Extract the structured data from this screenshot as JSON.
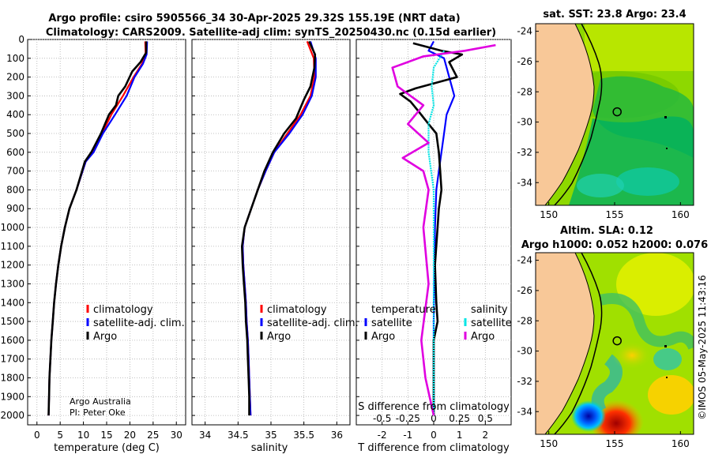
{
  "titles": {
    "line1": "Argo profile: csiro 5905566_34 30-Apr-2025 29.32S 155.19E (NRT data)",
    "line2": "Climatology: CARS2009. Satellite-adj clim: synTS_20250430.nc (0.15d earlier)",
    "sst": "sat. SST: 23.8 Argo: 23.4",
    "sla1": "Altim. SLA: 0.12",
    "sla2": "Argo h1000: 0.052 h2000: 0.076"
  },
  "watermark": "©IMOS 05-May-2025 11:43:16",
  "credit": {
    "line1": "Argo Australia",
    "line2": "PI: Peter Oke"
  },
  "legend_profiles": [
    "climatology",
    "satellite-adj. clim.",
    "Argo"
  ],
  "legend_diff": {
    "temperature_header": "temperature",
    "salinity_header": "salinity",
    "t_items": [
      "satellite",
      "Argo"
    ],
    "s_items": [
      "satellite",
      "Argo"
    ]
  },
  "colors": {
    "clim": "#ff0000",
    "sat": "#0000ff",
    "argo": "#000000",
    "sal_sat": "#00e5e5",
    "sal_argo": "#e000e0",
    "land": "#f8c898"
  },
  "chart_data": [
    {
      "type": "line",
      "xlabel": "temperature (deg C)",
      "ylabel": "",
      "xlim": [
        -2,
        32
      ],
      "ylim": [
        2050,
        0
      ],
      "xticks": [
        0,
        5,
        10,
        15,
        20,
        25,
        30
      ],
      "yticks": [
        0,
        100,
        200,
        300,
        400,
        500,
        600,
        700,
        800,
        900,
        1000,
        1100,
        1200,
        1300,
        1400,
        1500,
        1600,
        1700,
        1800,
        1900,
        2000
      ],
      "series": [
        {
          "name": "climatology",
          "points": [
            [
              23.3,
              10
            ],
            [
              23.4,
              80
            ],
            [
              22.6,
              130
            ],
            [
              20.8,
              200
            ],
            [
              18.5,
              300
            ],
            [
              16,
              400
            ],
            [
              14,
              500
            ],
            [
              12,
              600
            ],
            [
              10.5,
              650
            ],
            [
              8.5,
              800
            ],
            [
              7,
              900
            ],
            [
              6,
              1000
            ],
            [
              5.2,
              1100
            ],
            [
              4.6,
              1200
            ],
            [
              4.1,
              1300
            ],
            [
              3.7,
              1400
            ],
            [
              3.4,
              1500
            ],
            [
              3.1,
              1600
            ],
            [
              2.9,
              1700
            ],
            [
              2.7,
              1800
            ],
            [
              2.6,
              1900
            ],
            [
              2.5,
              2000
            ]
          ]
        },
        {
          "name": "satellite-adj. clim.",
          "points": [
            [
              23.7,
              10
            ],
            [
              23.6,
              80
            ],
            [
              22.8,
              130
            ],
            [
              21,
              200
            ],
            [
              19.3,
              300
            ],
            [
              16.8,
              400
            ],
            [
              14.2,
              500
            ],
            [
              12.2,
              600
            ],
            [
              10.5,
              650
            ],
            [
              8.5,
              800
            ],
            [
              7,
              900
            ],
            [
              6,
              1000
            ],
            [
              5.2,
              1100
            ],
            [
              4.6,
              1200
            ],
            [
              4.1,
              1300
            ],
            [
              3.7,
              1400
            ],
            [
              3.4,
              1500
            ],
            [
              3.1,
              1600
            ],
            [
              2.9,
              1700
            ],
            [
              2.7,
              1800
            ],
            [
              2.6,
              1900
            ],
            [
              2.5,
              2000
            ]
          ]
        },
        {
          "name": "Argo",
          "points": [
            [
              23.5,
              10
            ],
            [
              23.5,
              70
            ],
            [
              22.3,
              120
            ],
            [
              20.5,
              170
            ],
            [
              19,
              250
            ],
            [
              17.5,
              300
            ],
            [
              17,
              350
            ],
            [
              15.5,
              400
            ],
            [
              13.8,
              500
            ],
            [
              11.7,
              600
            ],
            [
              10.3,
              650
            ],
            [
              8.5,
              800
            ],
            [
              7,
              900
            ],
            [
              6,
              1000
            ],
            [
              5.2,
              1100
            ],
            [
              4.6,
              1200
            ],
            [
              4.1,
              1300
            ],
            [
              3.7,
              1400
            ],
            [
              3.4,
              1500
            ],
            [
              3.1,
              1600
            ],
            [
              2.9,
              1700
            ],
            [
              2.7,
              1800
            ],
            [
              2.6,
              1900
            ],
            [
              2.5,
              2000
            ]
          ]
        }
      ]
    },
    {
      "type": "line",
      "xlabel": "salinity",
      "xlim": [
        33.8,
        36.2
      ],
      "ylim": [
        2050,
        0
      ],
      "xticks": [
        34,
        34.5,
        35,
        35.5,
        36
      ],
      "series": [
        {
          "name": "climatology",
          "points": [
            [
              35.55,
              10
            ],
            [
              35.65,
              100
            ],
            [
              35.66,
              200
            ],
            [
              35.6,
              300
            ],
            [
              35.45,
              400
            ],
            [
              35.25,
              500
            ],
            [
              35.05,
              600
            ],
            [
              34.92,
              700
            ],
            [
              34.8,
              800
            ],
            [
              34.7,
              900
            ],
            [
              34.6,
              1000
            ],
            [
              34.57,
              1100
            ],
            [
              34.58,
              1200
            ],
            [
              34.6,
              1300
            ],
            [
              34.62,
              1400
            ],
            [
              34.63,
              1500
            ],
            [
              34.65,
              1600
            ],
            [
              34.66,
              1700
            ],
            [
              34.67,
              1800
            ],
            [
              34.68,
              1900
            ],
            [
              34.69,
              2000
            ]
          ]
        },
        {
          "name": "satellite-adj. clim.",
          "points": [
            [
              35.6,
              10
            ],
            [
              35.68,
              100
            ],
            [
              35.68,
              200
            ],
            [
              35.62,
              300
            ],
            [
              35.48,
              400
            ],
            [
              35.28,
              500
            ],
            [
              35.05,
              600
            ],
            [
              34.92,
              700
            ],
            [
              34.8,
              800
            ],
            [
              34.7,
              900
            ],
            [
              34.6,
              1000
            ],
            [
              34.57,
              1100
            ],
            [
              34.58,
              1200
            ],
            [
              34.6,
              1300
            ],
            [
              34.62,
              1400
            ],
            [
              34.63,
              1500
            ],
            [
              34.65,
              1600
            ],
            [
              34.66,
              1700
            ],
            [
              34.67,
              1800
            ],
            [
              34.68,
              1900
            ],
            [
              34.69,
              2000
            ]
          ]
        },
        {
          "name": "Argo",
          "points": [
            [
              35.58,
              10
            ],
            [
              35.67,
              80
            ],
            [
              35.66,
              150
            ],
            [
              35.6,
              250
            ],
            [
              35.5,
              320
            ],
            [
              35.38,
              420
            ],
            [
              35.2,
              500
            ],
            [
              35.03,
              600
            ],
            [
              34.9,
              700
            ],
            [
              34.8,
              800
            ],
            [
              34.7,
              900
            ],
            [
              34.6,
              1000
            ],
            [
              34.56,
              1100
            ],
            [
              34.57,
              1200
            ],
            [
              34.59,
              1300
            ],
            [
              34.61,
              1400
            ],
            [
              34.62,
              1500
            ],
            [
              34.64,
              1600
            ],
            [
              34.65,
              1700
            ],
            [
              34.66,
              1800
            ],
            [
              34.67,
              1900
            ],
            [
              34.67,
              2000
            ]
          ]
        }
      ]
    },
    {
      "type": "line",
      "xlabel": "T difference from climatology",
      "xlabel2": "S difference from climatology",
      "xlim": [
        -3,
        3
      ],
      "ylim": [
        2050,
        0
      ],
      "xticks": [
        -2,
        -1,
        0,
        1,
        2
      ],
      "xticks2": [
        -0.5,
        -0.25,
        0,
        0.25,
        0.5
      ],
      "series": [
        {
          "name": "temperature satellite",
          "points": [
            [
              0,
              10
            ],
            [
              -0.2,
              60
            ],
            [
              0.4,
              100
            ],
            [
              0.6,
              200
            ],
            [
              0.8,
              300
            ],
            [
              0.5,
              400
            ],
            [
              0.4,
              500
            ],
            [
              0.3,
              600
            ],
            [
              0.2,
              700
            ],
            [
              0.1,
              800
            ],
            [
              0.05,
              1000
            ],
            [
              0,
              1500
            ],
            [
              0,
              2000
            ]
          ]
        },
        {
          "name": "temperature Argo",
          "points": [
            [
              -0.8,
              20
            ],
            [
              0.3,
              60
            ],
            [
              1.1,
              80
            ],
            [
              0.6,
              120
            ],
            [
              0.9,
              200
            ],
            [
              -0.7,
              260
            ],
            [
              -1.3,
              290
            ],
            [
              -0.9,
              330
            ],
            [
              -0.6,
              380
            ],
            [
              -0.2,
              450
            ],
            [
              0.1,
              500
            ],
            [
              0.2,
              600
            ],
            [
              0.25,
              700
            ],
            [
              0.3,
              800
            ],
            [
              0.2,
              900
            ],
            [
              0.15,
              1000
            ],
            [
              0.05,
              1200
            ],
            [
              0.1,
              1400
            ],
            [
              0.15,
              1500
            ],
            [
              0,
              1600
            ],
            [
              0,
              1800
            ],
            [
              0,
              2000
            ]
          ]
        },
        {
          "name": "salinity satellite",
          "points": [
            [
              0.1,
              60
            ],
            [
              0,
              150
            ],
            [
              -0.02,
              250
            ],
            [
              0,
              350
            ],
            [
              -0.05,
              450
            ],
            [
              -0.05,
              600
            ],
            [
              0,
              800
            ],
            [
              0,
              1000
            ],
            [
              0,
              2000
            ]
          ]
        },
        {
          "name": "salinity Argo",
          "points": [
            [
              0.6,
              30
            ],
            [
              0.3,
              60
            ],
            [
              -0.1,
              90
            ],
            [
              -0.4,
              150
            ],
            [
              -0.35,
              250
            ],
            [
              -0.1,
              350
            ],
            [
              -0.25,
              450
            ],
            [
              -0.05,
              550
            ],
            [
              -0.3,
              630
            ],
            [
              -0.1,
              700
            ],
            [
              -0.05,
              800
            ],
            [
              -0.1,
              1000
            ],
            [
              -0.05,
              1300
            ],
            [
              -0.12,
              1600
            ],
            [
              -0.08,
              1800
            ],
            [
              0,
              2000
            ]
          ]
        }
      ]
    },
    {
      "type": "heatmap",
      "title": "sat. SST: 23.8 Argo: 23.4",
      "xlim": [
        149,
        161
      ],
      "ylim": [
        -35.5,
        -23.5
      ],
      "xticks": [
        150,
        155,
        160
      ],
      "yticks": [
        -24,
        -26,
        -28,
        -30,
        -32,
        -34
      ],
      "argo_position": [
        155.19,
        -29.32
      ]
    },
    {
      "type": "heatmap",
      "title": "Altim. SLA: 0.12",
      "xlim": [
        149,
        161
      ],
      "ylim": [
        -35.5,
        -23.5
      ],
      "xticks": [
        150,
        155,
        160
      ],
      "yticks": [
        -24,
        -26,
        -28,
        -30,
        -32,
        -34
      ],
      "argo_position": [
        155.19,
        -29.32
      ]
    }
  ]
}
